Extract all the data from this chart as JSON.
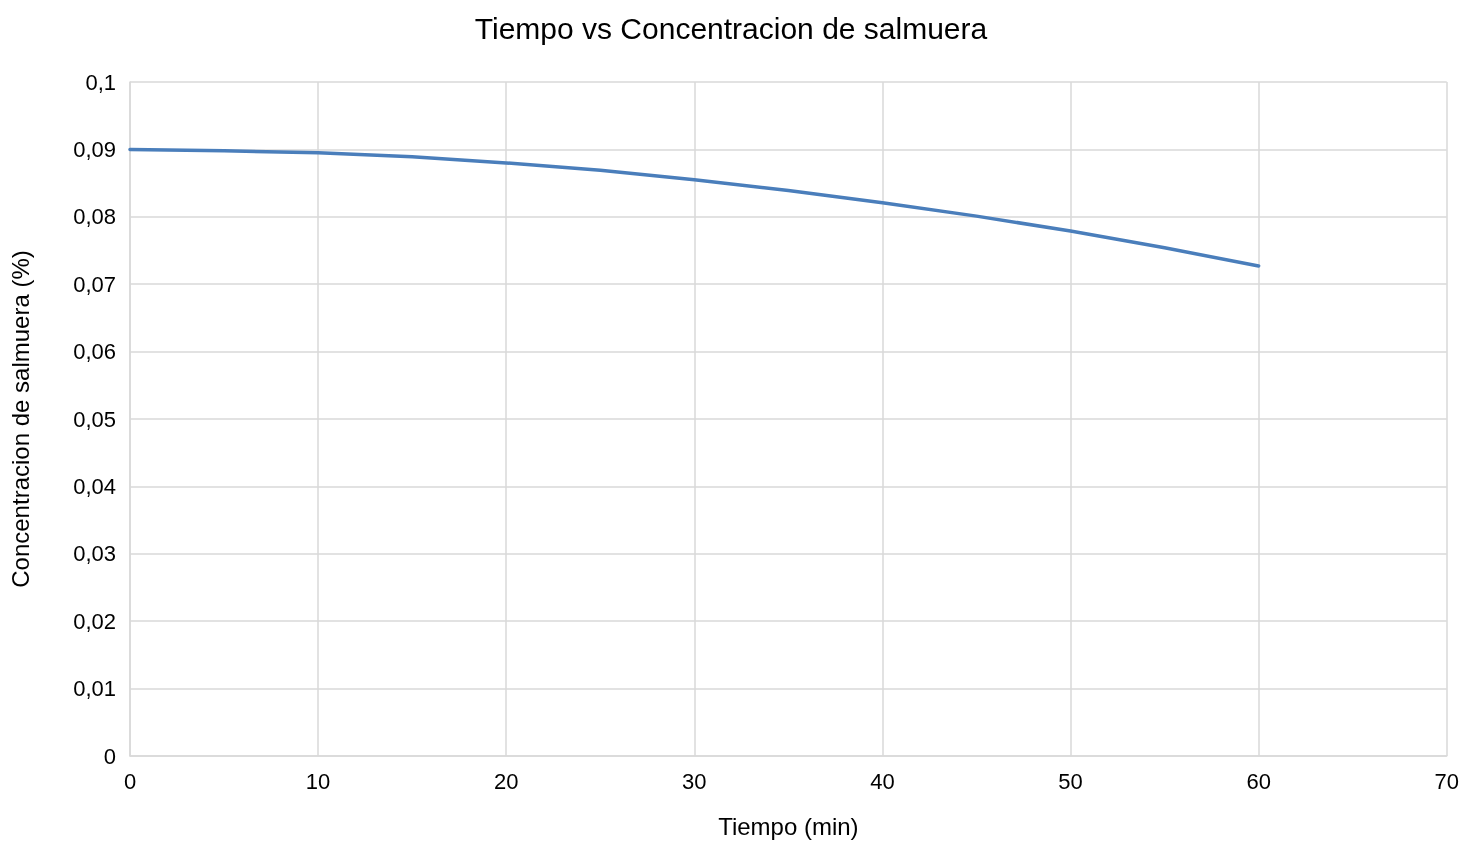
{
  "chart_data": {
    "type": "line",
    "title": "Tiempo vs Concentracion de salmuera",
    "xlabel": "Tiempo (min)",
    "ylabel": "Concentracion de salmuera (%)",
    "x": [
      0,
      5,
      10,
      15,
      20,
      25,
      30,
      35,
      40,
      45,
      50,
      55,
      60
    ],
    "series": [
      {
        "color": "#4a7ebb",
        "values": [
          0.09,
          0.0898,
          0.0895,
          0.0889,
          0.088,
          0.0869,
          0.0855,
          0.0839,
          0.0821,
          0.0801,
          0.0779,
          0.0754,
          0.0727
        ]
      }
    ],
    "xlim": [
      0,
      70
    ],
    "xticks": [
      0,
      10,
      20,
      30,
      40,
      50,
      60,
      70
    ],
    "ylim": [
      0,
      0.1
    ],
    "yticks": [
      0,
      {
        "value": 0.01,
        "label": "0,01"
      },
      {
        "value": 0.02,
        "label": "0,02"
      },
      {
        "value": 0.03,
        "label": "0,03"
      },
      {
        "value": 0.04,
        "label": "0,04"
      },
      {
        "value": 0.05,
        "label": "0,05"
      },
      {
        "value": 0.06,
        "label": "0,06"
      },
      {
        "value": 0.07,
        "label": "0,07"
      },
      {
        "value": 0.08,
        "label": "0,08"
      },
      {
        "value": 0.09,
        "label": "0,09"
      },
      {
        "value": 0.1,
        "label": "0,1"
      }
    ],
    "grid": true,
    "marker": "none",
    "line_style": "solid"
  }
}
